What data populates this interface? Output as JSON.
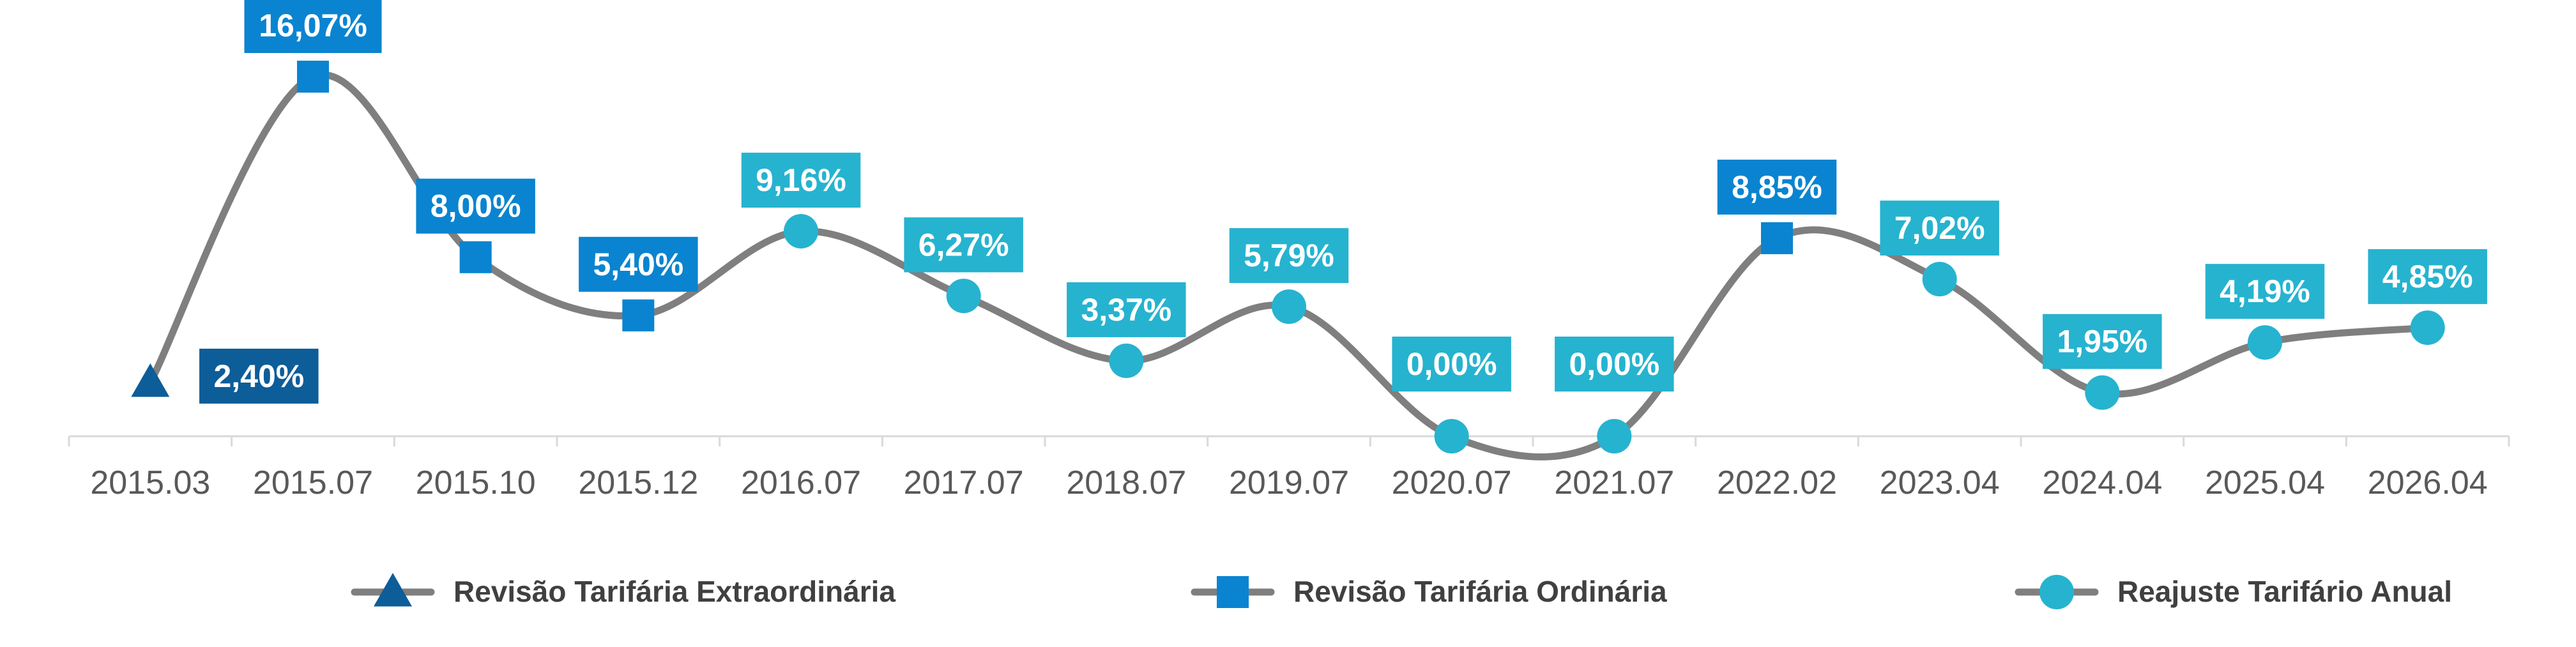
{
  "chart_data": {
    "type": "line",
    "categories": [
      "2015.03",
      "2015.07",
      "2015.10",
      "2015.12",
      "2016.07",
      "2017.07",
      "2018.07",
      "2019.07",
      "2020.07",
      "2021.07",
      "2022.02",
      "2023.04",
      "2024.04",
      "2025.04",
      "2026.04"
    ],
    "values": [
      2.4,
      16.07,
      8.0,
      5.4,
      9.16,
      6.27,
      3.37,
      5.79,
      0.0,
      0.0,
      8.85,
      7.02,
      1.95,
      4.19,
      4.85
    ],
    "labels": [
      "2,40%",
      "16,07%",
      "8,00%",
      "5,40%",
      "9,16%",
      "6,27%",
      "3,37%",
      "5,79%",
      "0,00%",
      "0,00%",
      "8,85%",
      "7,02%",
      "1,95%",
      "4,19%",
      "4,85%"
    ],
    "point_types": [
      "extraordinaria",
      "ordinaria",
      "ordinaria",
      "ordinaria",
      "anual",
      "anual",
      "anual",
      "anual",
      "anual",
      "anual",
      "ordinaria",
      "anual",
      "anual",
      "anual",
      "anual"
    ],
    "series": [
      {
        "key": "extraordinaria",
        "name": "Revisão Tarifária Extraordinária",
        "marker": "triangle",
        "color": "#0D5D99"
      },
      {
        "key": "ordinaria",
        "name": "Revisão Tarifária Ordinária",
        "marker": "square",
        "color": "#0A84D0"
      },
      {
        "key": "anual",
        "name": "Reajuste Tarifário Anual",
        "marker": "circle",
        "color": "#26B3CF"
      }
    ],
    "line_color": "#7F7F7F",
    "ylim": [
      0,
      17
    ],
    "legend_position": "bottom",
    "grid": false
  }
}
